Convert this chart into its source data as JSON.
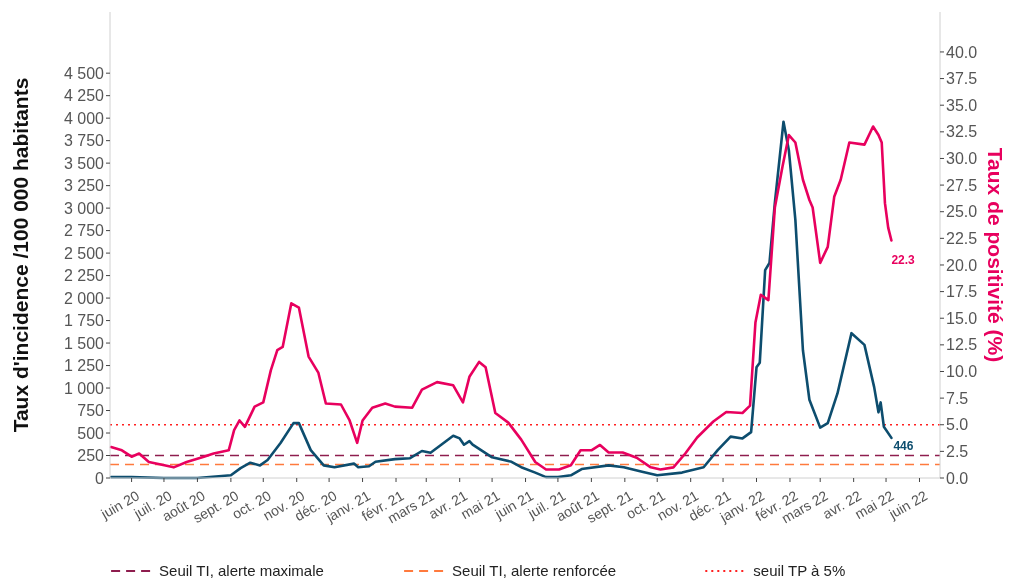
{
  "chart_data": {
    "type": "line",
    "ylabel": "Taux d'incidence /100 000 habitants",
    "y2label": "Taux de positivité (%)",
    "xlim": [
      "2020-05-12",
      "2022-06-20"
    ],
    "xticks": [
      {
        "value": "2020-06-01",
        "label": "juin 20"
      },
      {
        "value": "2020-07-01",
        "label": "juil. 20"
      },
      {
        "value": "2020-08-01",
        "label": "août 20"
      },
      {
        "value": "2020-09-01",
        "label": "sept. 20"
      },
      {
        "value": "2020-10-01",
        "label": "oct. 20"
      },
      {
        "value": "2020-11-01",
        "label": "nov. 20"
      },
      {
        "value": "2020-12-01",
        "label": "déc. 20"
      },
      {
        "value": "2021-01-01",
        "label": "janv. 21"
      },
      {
        "value": "2021-02-01",
        "label": "févr. 21"
      },
      {
        "value": "2021-03-01",
        "label": "mars 21"
      },
      {
        "value": "2021-04-01",
        "label": "avr. 21"
      },
      {
        "value": "2021-05-01",
        "label": "mai 21"
      },
      {
        "value": "2021-06-01",
        "label": "juin 21"
      },
      {
        "value": "2021-07-01",
        "label": "juil. 21"
      },
      {
        "value": "2021-08-01",
        "label": "août 21"
      },
      {
        "value": "2021-09-01",
        "label": "sept. 21"
      },
      {
        "value": "2021-10-01",
        "label": "oct. 21"
      },
      {
        "value": "2021-11-01",
        "label": "nov. 21"
      },
      {
        "value": "2021-12-01",
        "label": "déc. 21"
      },
      {
        "value": "2022-01-01",
        "label": "janv. 22"
      },
      {
        "value": "2022-02-01",
        "label": "févr. 22"
      },
      {
        "value": "2022-03-01",
        "label": "mars 22"
      },
      {
        "value": "2022-04-01",
        "label": "avr. 22"
      },
      {
        "value": "2022-05-01",
        "label": "mai 22"
      },
      {
        "value": "2022-06-01",
        "label": "juin 22"
      }
    ],
    "ylim": [
      0,
      5180
    ],
    "yticks": [
      0,
      250,
      500,
      750,
      {
        "value": 1000,
        "label": "1 000"
      },
      {
        "value": 1250,
        "label": "1 250"
      },
      {
        "value": 1500,
        "label": "1 500"
      },
      {
        "value": 1750,
        "label": "1 750"
      },
      {
        "value": 2000,
        "label": "2 000"
      },
      {
        "value": 2250,
        "label": "2 250"
      },
      {
        "value": 2500,
        "label": "2 500"
      },
      {
        "value": 2750,
        "label": "2 750"
      },
      {
        "value": 3000,
        "label": "3 000"
      },
      {
        "value": 3250,
        "label": "3 250"
      },
      {
        "value": 3500,
        "label": "3 500"
      },
      {
        "value": 3750,
        "label": "3 750"
      },
      {
        "value": 4000,
        "label": "4 000"
      },
      {
        "value": 4250,
        "label": "4 250"
      },
      {
        "value": 4500,
        "label": "4 500"
      }
    ],
    "y2lim": [
      0,
      43.75
    ],
    "y2ticks": [
      {
        "value": 0,
        "label": "0.0"
      },
      2.5,
      {
        "value": 5,
        "label": "5.0"
      },
      7.5,
      {
        "value": 10,
        "label": "10.0"
      },
      12.5,
      {
        "value": 15,
        "label": "15.0"
      },
      17.5,
      {
        "value": 20,
        "label": "20.0"
      },
      22.5,
      {
        "value": 25,
        "label": "25.0"
      },
      27.5,
      {
        "value": 30,
        "label": "30.0"
      },
      32.5,
      {
        "value": 35,
        "label": "35.0"
      },
      37.5,
      {
        "value": 40,
        "label": "40.0"
      }
    ],
    "series": [
      {
        "color": "#0d4d6e",
        "x": [
          "2020-05-13",
          "2020-06-01",
          "2020-07-01",
          "2020-08-01",
          "2020-09-01",
          "2020-09-10",
          "2020-09-19",
          "2020-09-28",
          "2020-10-05",
          "2020-10-17",
          "2020-10-29",
          "2020-11-03",
          "2020-11-14",
          "2020-11-26",
          "2020-12-06",
          "2020-12-24",
          "2020-12-28",
          "2021-01-07",
          "2021-01-13",
          "2021-01-31",
          "2021-02-14",
          "2021-02-25",
          "2021-03-05",
          "2021-03-26",
          "2021-04-01",
          "2021-04-05",
          "2021-04-10",
          "2021-04-13",
          "2021-05-01",
          "2021-05-19",
          "2021-05-28",
          "2021-06-10",
          "2021-06-20",
          "2021-07-01",
          "2021-07-13",
          "2021-07-23",
          "2021-08-17",
          "2021-08-31",
          "2021-09-17",
          "2021-10-01",
          "2021-10-24",
          "2021-11-13",
          "2021-11-26",
          "2021-12-08",
          "2021-12-19",
          "2021-12-27",
          "2022-01-01",
          "2022-01-04",
          "2022-01-09",
          "2022-01-13",
          "2022-01-18",
          "2022-01-26",
          "2022-01-31",
          "2022-02-06",
          "2022-02-13",
          "2022-02-19",
          "2022-03-01",
          "2022-03-08",
          "2022-03-17",
          "2022-03-30",
          "2022-04-11",
          "2022-04-20",
          "2022-04-24",
          "2022-04-26",
          "2022-04-29",
          "2022-05-06"
        ],
        "values": [
          10,
          10,
          0,
          0,
          30,
          110,
          170,
          140,
          200,
          390,
          610,
          610,
          310,
          140,
          120,
          160,
          120,
          130,
          180,
          210,
          220,
          300,
          280,
          470,
          440,
          370,
          410,
          370,
          230,
          180,
          120,
          60,
          10,
          10,
          30,
          100,
          140,
          120,
          70,
          30,
          60,
          120,
          310,
          460,
          440,
          510,
          1230,
          1280,
          2310,
          2390,
          3060,
          3960,
          3640,
          2870,
          1420,
          870,
          560,
          610,
          940,
          1610,
          1480,
          1010,
          730,
          840,
          570,
          446
        ],
        "value_labels": [
          null,
          null,
          null,
          null,
          null,
          null,
          null,
          null,
          null,
          null,
          null,
          null,
          null,
          null,
          null,
          null,
          null,
          null,
          null,
          null,
          null,
          null,
          null,
          null,
          null,
          null,
          null,
          null,
          null,
          null,
          null,
          null,
          null,
          null,
          null,
          null,
          null,
          null,
          null,
          null,
          null,
          null,
          null,
          null,
          null,
          null,
          null,
          null,
          null,
          null,
          null,
          null,
          null,
          null,
          null,
          null,
          null,
          null,
          null,
          null,
          null,
          null,
          null,
          null,
          null,
          "446"
        ]
      },
      {
        "color": "#e8005e",
        "axis": "y2",
        "x": [
          "2020-05-13",
          "2020-05-23",
          "2020-06-01",
          "2020-06-08",
          "2020-06-17",
          "2020-06-27",
          "2020-07-10",
          "2020-07-22",
          "2020-08-07",
          "2020-08-16",
          "2020-08-30",
          "2020-09-04",
          "2020-09-09",
          "2020-09-14",
          "2020-09-23",
          "2020-10-01",
          "2020-10-08",
          "2020-10-14",
          "2020-10-19",
          "2020-10-27",
          "2020-11-03",
          "2020-11-12",
          "2020-11-21",
          "2020-11-28",
          "2020-12-12",
          "2020-12-20",
          "2020-12-27",
          "2021-01-01",
          "2021-01-10",
          "2021-01-22",
          "2021-01-31",
          "2021-02-16",
          "2021-02-25",
          "2021-03-11",
          "2021-03-26",
          "2021-04-04",
          "2021-04-10",
          "2021-04-19",
          "2021-04-25",
          "2021-05-04",
          "2021-05-16",
          "2021-05-28",
          "2021-06-10",
          "2021-06-20",
          "2021-07-02",
          "2021-07-13",
          "2021-07-22",
          "2021-08-01",
          "2021-08-09",
          "2021-08-17",
          "2021-08-30",
          "2021-09-12",
          "2021-09-25",
          "2021-10-04",
          "2021-10-16",
          "2021-10-27",
          "2021-11-07",
          "2021-11-22",
          "2021-12-04",
          "2021-12-19",
          "2021-12-26",
          "2021-12-31",
          "2022-01-05",
          "2022-01-12",
          "2022-01-18",
          "2022-01-25",
          "2022-01-31",
          "2022-02-06",
          "2022-02-13",
          "2022-02-19",
          "2022-02-22",
          "2022-03-01",
          "2022-03-08",
          "2022-03-14",
          "2022-03-20",
          "2022-03-28",
          "2022-04-11",
          "2022-04-19",
          "2022-04-24",
          "2022-04-27",
          "2022-04-30",
          "2022-05-03",
          "2022-05-06"
        ],
        "values": [
          2.9,
          2.6,
          2.0,
          2.3,
          1.5,
          1.3,
          1.0,
          1.5,
          2.0,
          2.3,
          2.6,
          4.5,
          5.4,
          4.8,
          6.7,
          7.1,
          10.1,
          12.0,
          12.3,
          16.4,
          16.0,
          11.4,
          9.9,
          7.0,
          6.9,
          5.4,
          3.3,
          5.4,
          6.6,
          7.0,
          6.7,
          6.6,
          8.3,
          9.0,
          8.7,
          7.1,
          9.5,
          10.9,
          10.4,
          6.1,
          5.2,
          3.6,
          1.5,
          0.8,
          0.8,
          1.2,
          2.6,
          2.6,
          3.1,
          2.4,
          2.4,
          1.9,
          1.0,
          0.8,
          1.0,
          2.3,
          3.8,
          5.3,
          6.2,
          6.1,
          6.8,
          14.6,
          17.2,
          16.7,
          25.4,
          29.2,
          32.2,
          31.5,
          28.0,
          26.1,
          25.4,
          20.2,
          21.7,
          26.4,
          28.0,
          31.5,
          31.3,
          33.0,
          32.2,
          31.5,
          25.8,
          23.5,
          22.3
        ],
        "value_labels": [
          null,
          null,
          null,
          null,
          null,
          null,
          null,
          null,
          null,
          null,
          null,
          null,
          null,
          null,
          null,
          null,
          null,
          null,
          null,
          null,
          null,
          null,
          null,
          null,
          null,
          null,
          null,
          null,
          null,
          null,
          null,
          null,
          null,
          null,
          null,
          null,
          null,
          null,
          null,
          null,
          null,
          null,
          null,
          null,
          null,
          null,
          null,
          null,
          null,
          null,
          null,
          null,
          null,
          null,
          null,
          null,
          null,
          null,
          null,
          null,
          null,
          null,
          null,
          null,
          null,
          null,
          null,
          null,
          null,
          null,
          null,
          null,
          null,
          null,
          null,
          null,
          null,
          null,
          null,
          null,
          null,
          null,
          "22.3"
        ]
      }
    ],
    "ref_lines": [
      {
        "axis": "y",
        "value": 250,
        "label": "Seuil TI, alerte maximale",
        "color": "#8e1d4e",
        "line_style": "dashed"
      },
      {
        "axis": "y",
        "value": 150,
        "label": "Seuil TI, alerte renforcée",
        "color": "#ff7a3d",
        "line_style": "dashed"
      },
      {
        "axis": "y2",
        "value": 5,
        "label": "seuil TP à 5%",
        "color": "#ff2020",
        "line_style": "dotted"
      }
    ],
    "legend": "bottom",
    "grid": false
  }
}
